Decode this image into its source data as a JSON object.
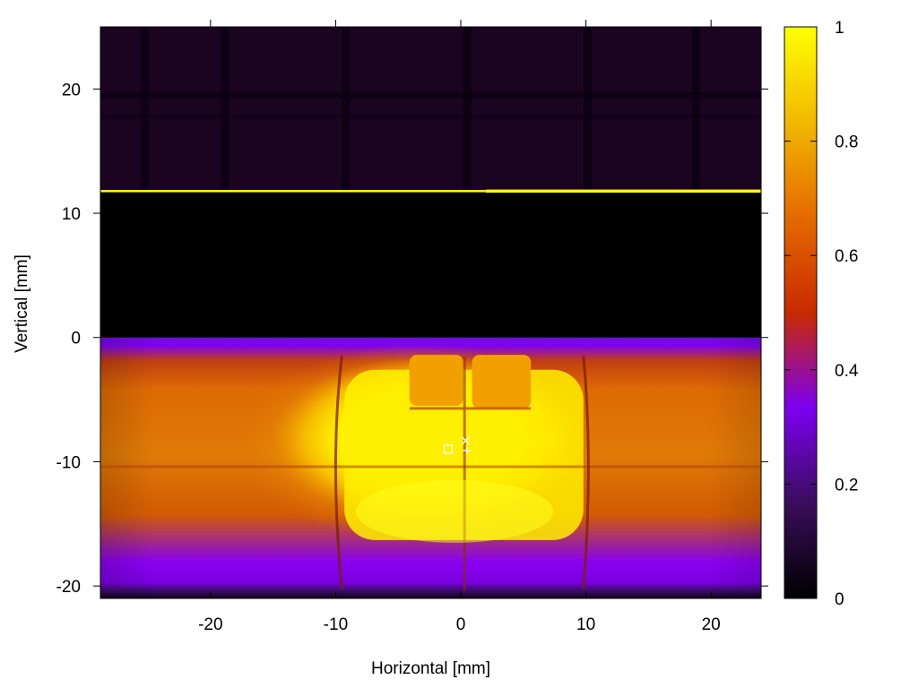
{
  "chart_data": {
    "type": "heatmap",
    "title": "",
    "xlabel": "Horizontal [mm]",
    "ylabel": "Vertical [mm]",
    "xlim": [
      -28.8,
      24
    ],
    "ylim": [
      -21,
      25
    ],
    "xticks": [
      -20,
      -10,
      0,
      10,
      20
    ],
    "yticks": [
      -20,
      -10,
      0,
      10,
      20
    ],
    "colorbar": {
      "range": [
        0,
        1
      ],
      "ticks": [
        0,
        0.2,
        0.4,
        0.6,
        0.8,
        1
      ],
      "colormap": [
        "#000000",
        "#3a0d5c",
        "#7d00f0",
        "#c82a00",
        "#e46a00",
        "#f2b800",
        "#ffff00"
      ]
    },
    "markers": [
      {
        "symbol": "square",
        "x": -1,
        "y": -9
      },
      {
        "symbol": "x",
        "x": 0.4,
        "y": -8.3
      },
      {
        "symbol": "plus",
        "x": 0.5,
        "y": -9.1
      }
    ],
    "regions": [
      {
        "name": "upper-field",
        "y_range": [
          11.8,
          25
        ],
        "level": 0.05
      },
      {
        "name": "yellow-line",
        "y": 11.8,
        "level": 1
      },
      {
        "name": "dark-band",
        "y_range": [
          0,
          11.8
        ],
        "level": 0
      },
      {
        "name": "beam-profile",
        "y_range": [
          -21,
          0
        ],
        "peak_level": 1,
        "peak_center": [
          -2.5,
          -8.5
        ]
      }
    ]
  }
}
